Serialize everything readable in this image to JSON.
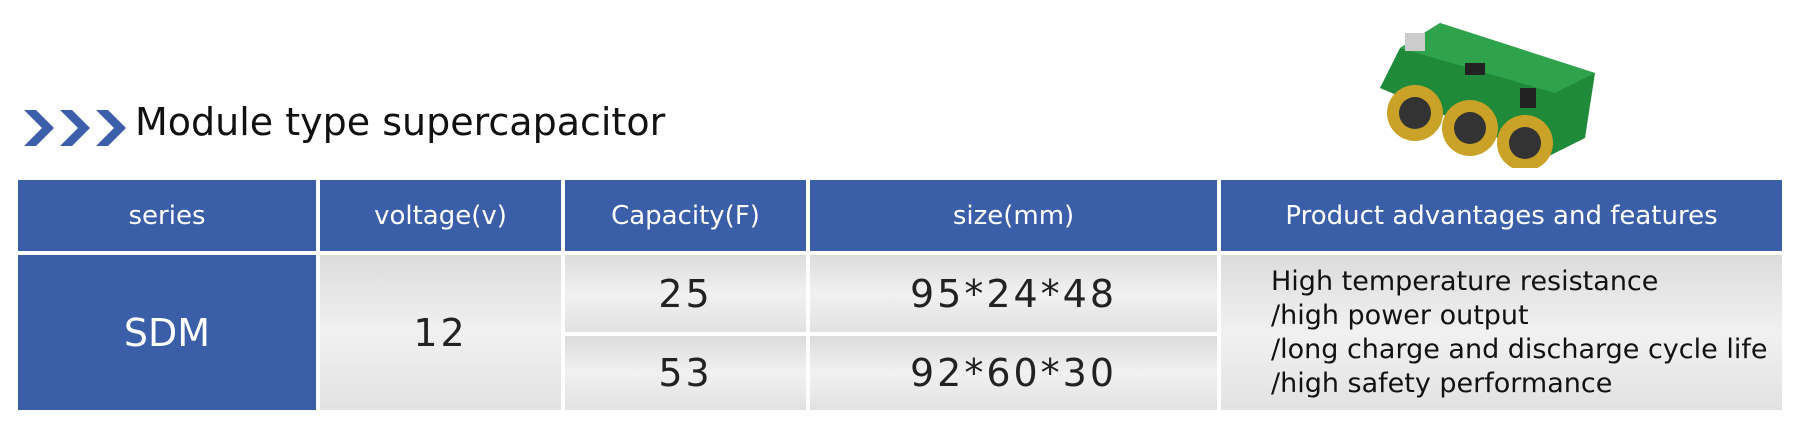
{
  "header": {
    "title": "Module type supercapacitor"
  },
  "table": {
    "columns": [
      "series",
      "voltage(v)",
      "Capacity(F)",
      "size(mm)",
      "Product advantages and features"
    ],
    "series": "SDM",
    "voltage": "12",
    "rows": [
      [
        "25",
        "95*24*48"
      ],
      [
        "53",
        "92*60*30"
      ]
    ],
    "features": [
      "High temperature resistance",
      "/high power output",
      "/long charge and discharge cycle life",
      "/high safety performance"
    ]
  }
}
